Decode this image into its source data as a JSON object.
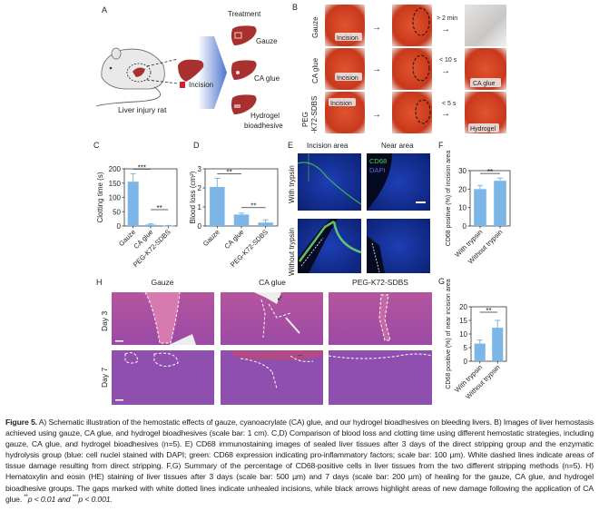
{
  "panel_labels": {
    "A": "A",
    "B": "B",
    "C": "C",
    "D": "D",
    "E": "E",
    "F": "F",
    "G": "G",
    "H": "H"
  },
  "panel_a": {
    "treatment_title": "Treatment",
    "mouse_label": "Liver injury rat",
    "incision_label": "Incision",
    "treatments": [
      "Gauze",
      "CA glue",
      "Hydrogel",
      "bioadhesive"
    ]
  },
  "panel_b": {
    "rows": [
      {
        "label": "Gauze",
        "incision": "Incision",
        "time": "> 2 min",
        "result": ""
      },
      {
        "label": "CA glue",
        "incision": "Incision",
        "time": "< 10 s",
        "result": "CA glue"
      },
      {
        "label_line1": "PEG",
        "label_line2": "-K72-SDBS",
        "incision": "Incision",
        "time": "< 5 s",
        "result": "Hydrogel"
      }
    ]
  },
  "panel_e": {
    "col_titles": [
      "Incision area",
      "Near area"
    ],
    "row_titles": [
      "With trypsin",
      "Without trypsin"
    ],
    "legend": [
      {
        "label": "CD68",
        "color": "#4ccf4c"
      },
      {
        "label": "DAPI",
        "color": "#4a5bd8"
      }
    ]
  },
  "panel_h": {
    "col_titles": [
      "Gauze",
      "CA glue",
      "PEG-K72-SDBS"
    ],
    "row_titles": [
      "Day 3",
      "Day 7"
    ]
  },
  "chart_data": [
    {
      "panel": "C",
      "type": "bar",
      "categories": [
        "Gauze",
        "CA glue",
        "PEG-K72-SDBS"
      ],
      "values": [
        155,
        5,
        1
      ],
      "error_upper": [
        183,
        8,
        2
      ],
      "ylabel": "Clotting time (s)",
      "ylim": [
        0,
        200
      ],
      "yticks": [
        0,
        50,
        100,
        150,
        200
      ],
      "significance": [
        {
          "from": 0,
          "to": 1,
          "label": "***"
        },
        {
          "from": 1,
          "to": 2,
          "label": "**"
        }
      ],
      "bar_color": "#7cb6e6"
    },
    {
      "panel": "D",
      "type": "bar",
      "categories": [
        "Gauze",
        "CA glue",
        "PEG-K72-SDBS"
      ],
      "values": [
        2.05,
        0.6,
        0.18
      ],
      "error_upper": [
        2.5,
        0.68,
        0.32
      ],
      "ylabel": "Blood loss (cm²)",
      "ylim": [
        0,
        3
      ],
      "yticks": [
        0,
        1,
        2,
        3
      ],
      "significance": [
        {
          "from": 0,
          "to": 1,
          "label": "**"
        },
        {
          "from": 1,
          "to": 2,
          "label": "**"
        }
      ],
      "bar_color": "#7cb6e6"
    },
    {
      "panel": "F",
      "type": "bar",
      "categories": [
        "With trypsin",
        "Without trypsin"
      ],
      "values": [
        20,
        24.5
      ],
      "error_upper": [
        22,
        26
      ],
      "ylabel": "CD68 positive (%) of incision area",
      "ylim": [
        0,
        30
      ],
      "yticks": [
        0,
        10,
        20,
        30
      ],
      "significance": [
        {
          "from": 0,
          "to": 1,
          "label": "**"
        }
      ],
      "bar_color": "#7cb6e6"
    },
    {
      "panel": "G",
      "type": "bar",
      "categories": [
        "With trypsin",
        "Without trypsin"
      ],
      "values": [
        6.5,
        12.3
      ],
      "error_upper": [
        7.8,
        15
      ],
      "ylabel": "CD68 positive (%) of near incision area",
      "ylim": [
        0,
        20
      ],
      "yticks": [
        0,
        5,
        10,
        15,
        20
      ],
      "significance": [
        {
          "from": 0,
          "to": 1,
          "label": "**"
        }
      ],
      "bar_color": "#7cb6e6"
    }
  ],
  "caption": {
    "figure_label": "Figure 5.",
    "text": " A) Schematic illustration of the hemostatic effects of gauze, cyanoacrylate (CA) glue, and our hydrogel bioadhesives on bleeding livers. B) Images of liver hemostasis achieved using gauze, CA glue, and hydrogel bioadhesives (scale bar: 1 cm). C,D) Comparison of blood loss and clotting time using different hemostatic strategies, including gauze, CA glue, and hydrogel bioadhesives (n=5). E) CD68 immunostaining images of sealed liver tissues after 3 days of the direct stripping group and the enzymatic hydrolysis group (blue: cell nuclei stained with DAPI; green: CD68 expression indicating pro-inflammatory factors; scale bar: 100 µm). White dashed lines indicate areas of tissue damage resulting from direct stripping. F,G) Summary of the percentage of CD68-positive cells in liver tissues from the two different stripping methods (n=5). H) Hematoxylin and eosin (HE) staining of liver tissues after 3 days (scale bar: 500 µm) and 7 days (scale bar: 200 µm) of healing for the gauze, CA glue, and hydrogel bioadhesive groups. The gaps marked with white dotted lines indicate unhealed incisions, while black arrows highlight areas of new damage following the application of CA glue. ",
    "sig1_mark": "**",
    "sig1_text": "p < 0.01 and ",
    "sig2_mark": "***",
    "sig2_text": "p < 0.001."
  }
}
